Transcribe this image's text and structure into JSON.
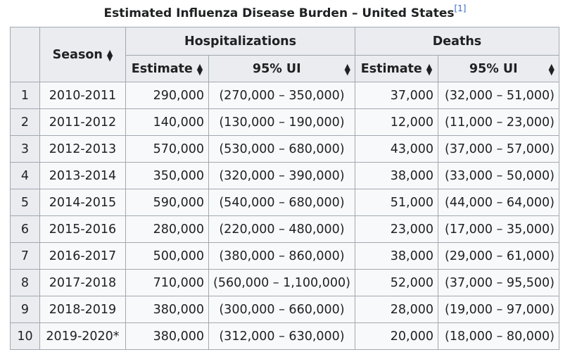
{
  "caption": {
    "title": "Estimated Influenza Disease Burden – United States",
    "ref": "[1]"
  },
  "headers": {
    "season": "Season",
    "hospitalizations": "Hospitalizations",
    "deaths": "Deaths",
    "hosp_estimate": "Estimate",
    "hosp_ui": "95% UI",
    "death_estimate": "Estimate",
    "death_ui": "95% UI"
  },
  "rows": [
    {
      "idx": "1",
      "season": "2010-2011",
      "hosp_est": "290,000",
      "hosp_ui": "(270,000 – 350,000)",
      "death_est": "37,000",
      "death_ui": "(32,000 – 51,000)"
    },
    {
      "idx": "2",
      "season": "2011-2012",
      "hosp_est": "140,000",
      "hosp_ui": "(130,000 – 190,000)",
      "death_est": "12,000",
      "death_ui": "(11,000 – 23,000)"
    },
    {
      "idx": "3",
      "season": "2012-2013",
      "hosp_est": "570,000",
      "hosp_ui": "(530,000 – 680,000)",
      "death_est": "43,000",
      "death_ui": "(37,000 – 57,000)"
    },
    {
      "idx": "4",
      "season": "2013-2014",
      "hosp_est": "350,000",
      "hosp_ui": "(320,000 – 390,000)",
      "death_est": "38,000",
      "death_ui": "(33,000 – 50,000)"
    },
    {
      "idx": "5",
      "season": "2014-2015",
      "hosp_est": "590,000",
      "hosp_ui": "(540,000 – 680,000)",
      "death_est": "51,000",
      "death_ui": "(44,000 – 64,000)"
    },
    {
      "idx": "6",
      "season": "2015-2016",
      "hosp_est": "280,000",
      "hosp_ui": "(220,000 – 480,000)",
      "death_est": "23,000",
      "death_ui": "(17,000 – 35,000)"
    },
    {
      "idx": "7",
      "season": "2016-2017",
      "hosp_est": "500,000",
      "hosp_ui": "(380,000 – 860,000)",
      "death_est": "38,000",
      "death_ui": "(29,000 – 61,000)"
    },
    {
      "idx": "8",
      "season": "2017-2018",
      "hosp_est": "710,000",
      "hosp_ui": "(560,000 – 1,100,000)",
      "death_est": "52,000",
      "death_ui": "(37,000 – 95,500)"
    },
    {
      "idx": "9",
      "season": "2018-2019",
      "hosp_est": "380,000",
      "hosp_ui": "(300,000 – 660,000)",
      "death_est": "28,000",
      "death_ui": "(19,000 – 97,000)"
    },
    {
      "idx": "10",
      "season": "2019-2020*",
      "hosp_est": "380,000",
      "hosp_ui": "(312,000 – 630,000)",
      "death_est": "20,000",
      "death_ui": "(18,000 – 80,000)"
    }
  ]
}
